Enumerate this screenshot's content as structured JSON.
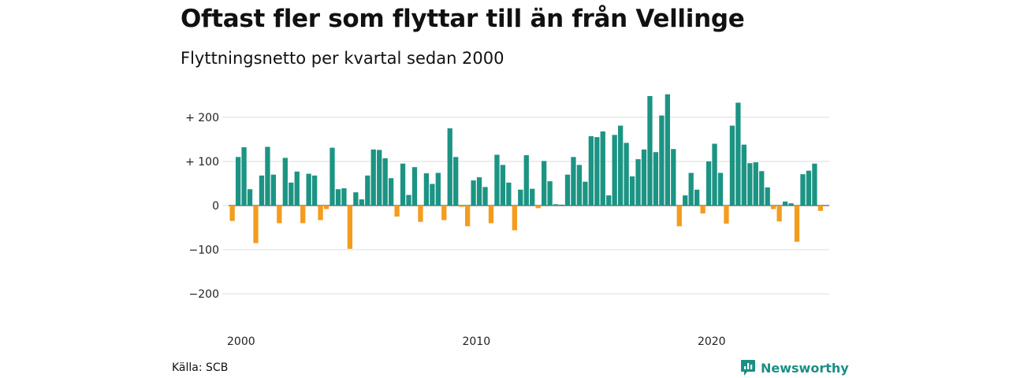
{
  "header": {
    "title": "Oftast fler som flyttar till än från Vellinge",
    "subtitle": "Flyttningsnetto per kvartal sedan 2000"
  },
  "footer": {
    "source": "Källa: SCB",
    "brand": "Newsworthy",
    "brand_icon": "bar-chart-speech-bubble-icon"
  },
  "colors": {
    "positive": "#1c9484",
    "negative": "#f39c1e",
    "grid": "#dddddd",
    "brand": "#1c8f84"
  },
  "chart_data": {
    "type": "bar",
    "xlabel": "",
    "ylabel": "",
    "ylim": [
      -250,
      260
    ],
    "y_ticks": [
      {
        "value": 200,
        "label": "+ 200"
      },
      {
        "value": 100,
        "label": "+ 100"
      },
      {
        "value": 0,
        "label": "0"
      },
      {
        "value": -100,
        "label": "−100"
      },
      {
        "value": -200,
        "label": "−200"
      }
    ],
    "x_ticks": [
      "2000",
      "2010",
      "2020"
    ],
    "grid": true,
    "legend": "none",
    "start": "2000-Q1",
    "values": [
      -35,
      110,
      132,
      37,
      -85,
      68,
      133,
      70,
      -40,
      108,
      52,
      77,
      -40,
      72,
      68,
      -33,
      -8,
      131,
      37,
      39,
      -98,
      30,
      14,
      68,
      127,
      126,
      107,
      62,
      -25,
      95,
      24,
      87,
      -37,
      73,
      49,
      74,
      -33,
      175,
      110,
      -3,
      -47,
      57,
      64,
      42,
      -40,
      115,
      92,
      52,
      -56,
      36,
      114,
      38,
      -6,
      101,
      55,
      3,
      2,
      70,
      110,
      92,
      54,
      157,
      155,
      168,
      23,
      160,
      181,
      142,
      66,
      105,
      127,
      248,
      121,
      204,
      252,
      128,
      -47,
      23,
      74,
      36,
      -18,
      100,
      140,
      74,
      -41,
      181,
      233,
      138,
      96,
      98,
      78,
      41,
      -8,
      -36,
      9,
      5,
      -82,
      71,
      79,
      95,
      -12
    ]
  }
}
